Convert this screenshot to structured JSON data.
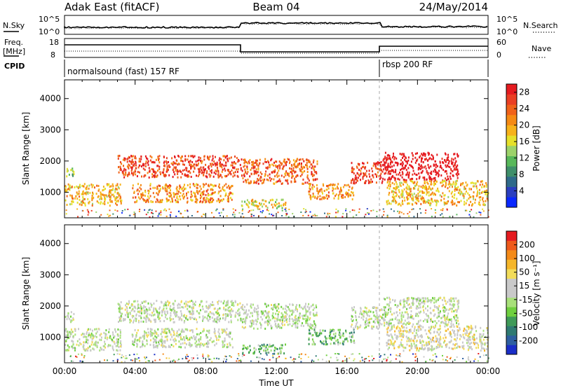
{
  "header": {
    "station": "Adak East (fitACF)",
    "beam": "Beam 04",
    "date": "24/May/2014"
  },
  "strip_labels": {
    "nsky": "N.Sky",
    "nsearch": "N.Search",
    "freq_top": "Freq.",
    "freq_unit": "[MHz]",
    "nave": "Nave",
    "cpid": "CPID",
    "nsky_ticks": [
      "10^5",
      "10^0"
    ],
    "nsearch_ticks": [
      "10^5",
      "10^0"
    ],
    "freq_ticks": [
      "18",
      "8"
    ],
    "nave_ticks": [
      "60",
      "0"
    ]
  },
  "cpid_segments": [
    {
      "label": "normalsound (fast) 157 RF",
      "start_hour": 0,
      "end_hour": 18
    },
    {
      "label": "rbsp 200 RF",
      "start_hour": 18,
      "end_hour": 24
    }
  ],
  "chart_data": [
    {
      "type": "heatmap",
      "name": "power-panel",
      "ylabel": "Slant Range [km]",
      "xlabel": "",
      "x_range_hours": [
        0,
        24
      ],
      "y_range_km": [
        180,
        4600
      ],
      "ytick_labels": [
        "1000",
        "2000",
        "3000",
        "4000"
      ],
      "ytick_values": [
        1000,
        2000,
        3000,
        4000
      ],
      "colorbar": {
        "title": "Power [dB]",
        "tick_labels": [
          "4",
          "8",
          "12",
          "16",
          "20",
          "24",
          "28"
        ],
        "range": [
          0,
          30
        ],
        "colors": [
          "#0a28ff",
          "#2b3fbf",
          "#2f6a8a",
          "#3f8f6a",
          "#58b85a",
          "#9cd26a",
          "#e6e02a",
          "#f7b21a",
          "#f58a14",
          "#f0621a",
          "#ea3f24",
          "#e51b20"
        ]
      },
      "echo_bands": [
        {
          "t0": 0.0,
          "t1": 0.5,
          "r0": 1500,
          "r1": 1850,
          "v": 5
        },
        {
          "t0": 0.0,
          "t1": 3.2,
          "r0": 600,
          "r1": 1300,
          "v": 7
        },
        {
          "t0": 3.0,
          "t1": 10.0,
          "r0": 1500,
          "r1": 2200,
          "v": 10
        },
        {
          "t0": 3.8,
          "t1": 9.5,
          "r0": 700,
          "r1": 1300,
          "v": 8
        },
        {
          "t0": 10.0,
          "t1": 14.3,
          "r0": 1300,
          "r1": 2100,
          "v": 9
        },
        {
          "t0": 10.0,
          "t1": 12.5,
          "r0": 500,
          "r1": 800,
          "v": 6
        },
        {
          "t0": 13.8,
          "t1": 16.4,
          "r0": 800,
          "r1": 1300,
          "v": 8
        },
        {
          "t0": 16.2,
          "t1": 18.0,
          "r0": 1300,
          "r1": 2000,
          "v": 10
        },
        {
          "t0": 18.0,
          "t1": 22.3,
          "r0": 1400,
          "r1": 2300,
          "v": 12
        },
        {
          "t0": 18.2,
          "t1": 24.0,
          "r0": 600,
          "r1": 1400,
          "v": 7
        }
      ]
    },
    {
      "type": "heatmap",
      "name": "velocity-panel",
      "ylabel": "Slant Range [km]",
      "xlabel": "Time UT",
      "x_range_hours": [
        0,
        24
      ],
      "xtick_labels": [
        "00:00",
        "04:00",
        "08:00",
        "12:00",
        "16:00",
        "20:00",
        "00:00"
      ],
      "xtick_values": [
        0,
        4,
        8,
        12,
        16,
        20,
        24
      ],
      "y_range_km": [
        180,
        4600
      ],
      "ytick_labels": [
        "1000",
        "2000",
        "3000",
        "4000"
      ],
      "ytick_values": [
        1000,
        2000,
        3000,
        4000
      ],
      "colorbar": {
        "title": "Velocity [m s⁻¹]",
        "tick_labels": [
          "200",
          "100",
          "50",
          "15",
          "-15",
          "-50",
          "-100",
          "-200"
        ],
        "colors": [
          "#1a2ec8",
          "#2e5fa0",
          "#2f7a72",
          "#3f9a58",
          "#6fcf3f",
          "#a8e07a",
          "#c9c9c9",
          "#c9c9c9",
          "#f2dc5a",
          "#f5b62a",
          "#f48a18",
          "#ee5a1c",
          "#e51b20"
        ]
      },
      "echo_bands": [
        {
          "t0": 0.0,
          "t1": 0.5,
          "r0": 1500,
          "r1": 1850,
          "v": 6
        },
        {
          "t0": 0.0,
          "t1": 3.2,
          "r0": 600,
          "r1": 1300,
          "v": 6
        },
        {
          "t0": 3.0,
          "t1": 10.0,
          "r0": 1500,
          "r1": 2200,
          "v": 6
        },
        {
          "t0": 3.8,
          "t1": 9.5,
          "r0": 700,
          "r1": 1300,
          "v": 6
        },
        {
          "t0": 10.0,
          "t1": 14.3,
          "r0": 1300,
          "r1": 2100,
          "v": 6
        },
        {
          "t0": 10.0,
          "t1": 12.5,
          "r0": 500,
          "r1": 800,
          "v": 4
        },
        {
          "t0": 13.8,
          "t1": 16.4,
          "r0": 800,
          "r1": 1300,
          "v": 4
        },
        {
          "t0": 16.2,
          "t1": 18.0,
          "r0": 1300,
          "r1": 2000,
          "v": 6
        },
        {
          "t0": 18.0,
          "t1": 22.3,
          "r0": 1400,
          "r1": 2300,
          "v": 6
        },
        {
          "t0": 18.2,
          "t1": 24.0,
          "r0": 600,
          "r1": 1400,
          "v": 7
        }
      ]
    }
  ]
}
